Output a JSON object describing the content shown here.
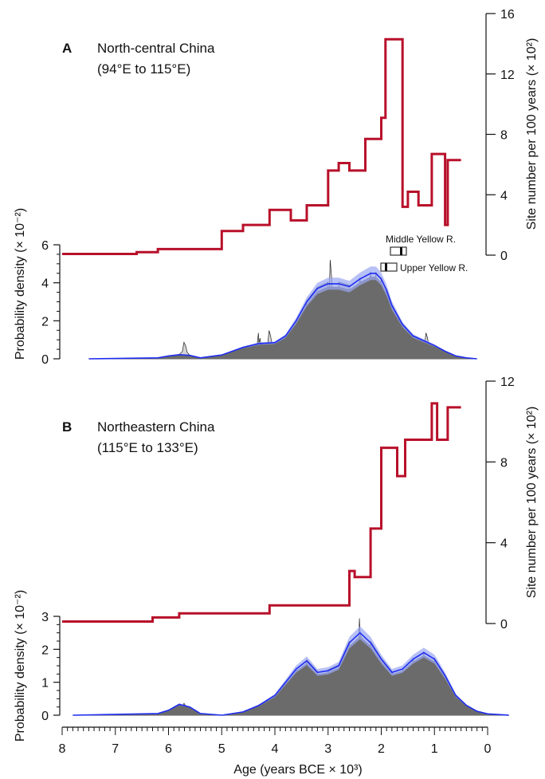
{
  "colors": {
    "sites": "#b8102a",
    "kde": "#1f2cf0",
    "kde_band": "#9aa6f2",
    "hist_fill": "#6b6b6b",
    "raw_fill": "#d4d4d4",
    "axis": "#111111"
  },
  "xaxis": {
    "label": "Age (years BCE × 10³)",
    "ticks": [
      "8",
      "7",
      "6",
      "5",
      "4",
      "3",
      "2",
      "1",
      "0"
    ],
    "range": [
      8,
      0
    ],
    "minor_step": 0.1
  },
  "chart_data": [
    {
      "type": "line",
      "panel": "A",
      "panel_letter": "A",
      "title_line1": "North-central China",
      "title_line2": "(94°E to 115°E)",
      "left_axis": {
        "label": "Probability density (× 10⁻²)",
        "ticks": [
          "0",
          "2",
          "4",
          "6"
        ],
        "range": [
          0,
          6
        ]
      },
      "right_axis": {
        "label": "Site number per 100 years (× 10²)",
        "ticks": [
          "0",
          "4",
          "8",
          "12",
          "16"
        ],
        "range": [
          0,
          16
        ]
      },
      "inset": {
        "label_middle": "Middle Yellow R.",
        "label_upper": "Upper Yellow R."
      },
      "kde": {
        "x": [
          7.5,
          6.2,
          6.0,
          5.8,
          5.6,
          5.4,
          5.0,
          4.6,
          4.3,
          4.0,
          3.8,
          3.6,
          3.4,
          3.2,
          3.0,
          2.8,
          2.6,
          2.4,
          2.2,
          2.1,
          2.0,
          1.9,
          1.8,
          1.6,
          1.4,
          1.2,
          1.0,
          0.8,
          0.6,
          0.4,
          0.2
        ],
        "y": [
          0,
          0.05,
          0.15,
          0.22,
          0.18,
          0.05,
          0.2,
          0.6,
          0.8,
          0.85,
          1.2,
          2.0,
          3.0,
          3.7,
          3.95,
          3.95,
          3.8,
          4.2,
          4.5,
          4.5,
          4.2,
          3.6,
          2.8,
          1.8,
          1.2,
          0.95,
          0.7,
          0.4,
          0.15,
          0.05,
          0
        ]
      },
      "sites": {
        "x": [
          8.0,
          6.6,
          6.6,
          6.2,
          6.2,
          5.0,
          5.0,
          4.6,
          4.6,
          4.1,
          4.1,
          3.7,
          3.7,
          3.4,
          3.4,
          3.0,
          3.0,
          2.8,
          2.8,
          2.6,
          2.6,
          2.3,
          2.3,
          2.0,
          2.0,
          1.92,
          1.92,
          1.6,
          1.6,
          1.5,
          1.5,
          1.3,
          1.3,
          1.05,
          1.05,
          0.8,
          0.8,
          0.75,
          0.75,
          0.5
        ],
        "y": [
          0.08,
          0.08,
          0.2,
          0.2,
          0.4,
          0.4,
          1.6,
          1.6,
          2.0,
          2.0,
          3.0,
          3.0,
          2.3,
          2.3,
          3.3,
          3.3,
          5.6,
          5.6,
          6.1,
          6.1,
          5.6,
          5.6,
          7.7,
          7.7,
          9.1,
          9.1,
          14.3,
          14.3,
          3.2,
          3.2,
          4.2,
          4.2,
          3.3,
          3.3,
          6.7,
          6.7,
          2.0,
          2.0,
          6.3,
          6.3
        ]
      },
      "raw_peaks": [
        [
          5.7,
          1.4
        ],
        [
          4.3,
          2.2
        ],
        [
          4.1,
          2.4
        ],
        [
          3.6,
          2.1
        ],
        [
          2.95,
          8.4
        ],
        [
          2.85,
          5.4
        ],
        [
          2.5,
          4.6
        ],
        [
          2.3,
          4.9
        ],
        [
          2.2,
          6.8
        ],
        [
          2.05,
          6.0
        ],
        [
          1.15,
          2.2
        ]
      ]
    },
    {
      "type": "line",
      "panel": "B",
      "panel_letter": "B",
      "title_line1": "Northeastern China",
      "title_line2": "(115°E to 133°E)",
      "left_axis": {
        "label": "Probability density (× 10⁻²)",
        "ticks": [
          "0",
          "1",
          "2",
          "3"
        ],
        "range": [
          0,
          3
        ]
      },
      "right_axis": {
        "label": "Site number per 100 years (× 10²)",
        "ticks": [
          "0",
          "4",
          "8",
          "12"
        ],
        "range": [
          0,
          12
        ]
      },
      "kde": {
        "x": [
          7.8,
          6.2,
          6.0,
          5.8,
          5.6,
          5.4,
          5.0,
          4.6,
          4.3,
          4.0,
          3.8,
          3.6,
          3.4,
          3.2,
          3.0,
          2.8,
          2.6,
          2.4,
          2.2,
          2.0,
          1.8,
          1.6,
          1.4,
          1.2,
          1.0,
          0.8,
          0.6,
          0.4,
          0.2,
          0.0,
          -0.4
        ],
        "y": [
          0,
          0.05,
          0.15,
          0.33,
          0.25,
          0.05,
          0.0,
          0.1,
          0.3,
          0.6,
          1.0,
          1.4,
          1.65,
          1.3,
          1.35,
          1.5,
          2.2,
          2.5,
          2.2,
          1.7,
          1.3,
          1.4,
          1.7,
          1.9,
          1.7,
          1.2,
          0.6,
          0.3,
          0.12,
          0.04,
          0
        ]
      },
      "sites": {
        "x": [
          8.0,
          6.3,
          6.3,
          5.8,
          5.8,
          4.1,
          4.1,
          2.6,
          2.6,
          2.5,
          2.5,
          2.2,
          2.2,
          2.0,
          2.0,
          1.7,
          1.7,
          1.55,
          1.55,
          1.05,
          1.05,
          0.95,
          0.95,
          0.75,
          0.75,
          0.5
        ],
        "y": [
          0.1,
          0.1,
          0.3,
          0.3,
          0.5,
          0.5,
          0.9,
          0.9,
          2.6,
          2.6,
          2.3,
          2.3,
          4.7,
          4.7,
          8.7,
          8.7,
          7.3,
          7.3,
          9.1,
          9.1,
          10.9,
          10.9,
          9.1,
          9.1,
          10.7,
          10.7
        ]
      },
      "raw_peaks": [
        [
          5.7,
          1.3
        ],
        [
          4.3,
          0.9
        ],
        [
          3.6,
          3.1
        ],
        [
          3.1,
          1.8
        ],
        [
          2.55,
          4.7
        ],
        [
          2.5,
          4.9
        ],
        [
          2.4,
          10.5
        ],
        [
          2.3,
          5.0
        ],
        [
          1.6,
          1.5
        ],
        [
          1.3,
          2.8
        ],
        [
          1.1,
          2.6
        ]
      ]
    }
  ]
}
